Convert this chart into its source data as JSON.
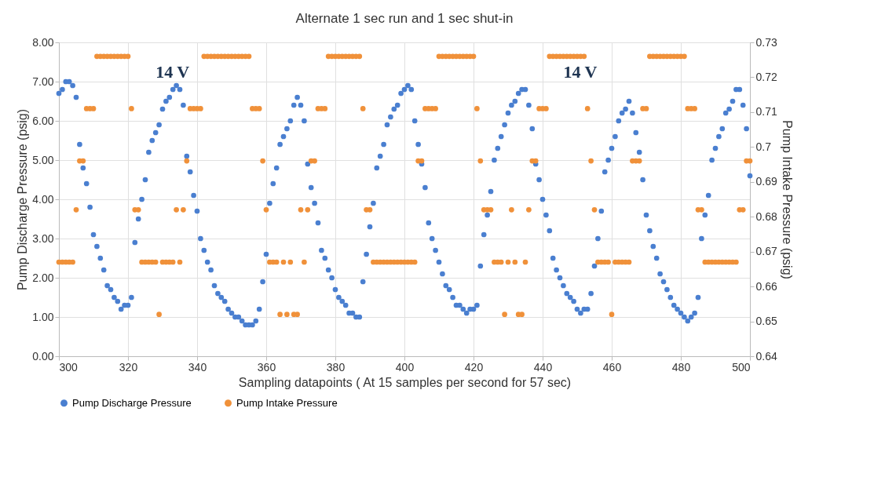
{
  "chart_data": {
    "type": "scatter",
    "title": "Alternate 1 sec run and 1 sec shut-in",
    "xlabel": "Sampling datapoints ( At 15 samples per second for 57 sec)",
    "ylabel": "Pump Discharge Pressure (psig)",
    "y2label": "Pump Intake Pressure (psig)",
    "x": [
      300,
      301,
      302,
      303,
      304,
      305,
      306,
      307,
      308,
      309,
      310,
      311,
      312,
      313,
      314,
      315,
      316,
      317,
      318,
      319,
      320,
      321,
      322,
      323,
      324,
      325,
      326,
      327,
      328,
      329,
      330,
      331,
      332,
      333,
      334,
      335,
      336,
      337,
      338,
      339,
      340,
      341,
      342,
      343,
      344,
      345,
      346,
      347,
      348,
      349,
      350,
      351,
      352,
      353,
      354,
      355,
      356,
      357,
      358,
      359,
      360,
      361,
      362,
      363,
      364,
      365,
      366,
      367,
      368,
      369,
      370,
      371,
      372,
      373,
      374,
      375,
      376,
      377,
      378,
      379,
      380,
      381,
      382,
      383,
      384,
      385,
      386,
      387,
      388,
      389,
      390,
      391,
      392,
      393,
      394,
      395,
      396,
      397,
      398,
      399,
      400,
      401,
      402,
      403,
      404,
      405,
      406,
      407,
      408,
      409,
      410,
      411,
      412,
      413,
      414,
      415,
      416,
      417,
      418,
      419,
      420,
      421,
      422,
      423,
      424,
      425,
      426,
      427,
      428,
      429,
      430,
      431,
      432,
      433,
      434,
      435,
      436,
      437,
      438,
      439,
      440,
      441,
      442,
      443,
      444,
      445,
      446,
      447,
      448,
      449,
      450,
      451,
      452,
      453,
      454,
      455,
      456,
      457,
      458,
      459,
      460,
      461,
      462,
      463,
      464,
      465,
      466,
      467,
      468,
      469,
      470,
      471,
      472,
      473,
      474,
      475,
      476,
      477,
      478,
      479,
      480,
      481,
      482,
      483,
      484,
      485,
      486,
      487,
      488,
      489,
      490,
      491,
      492,
      493,
      494,
      495,
      496,
      497,
      498,
      499,
      500
    ],
    "series": [
      {
        "name": "Pump Discharge Pressure",
        "color": "#4a7fd0",
        "values": [
          6.7,
          6.8,
          7.0,
          7.0,
          6.9,
          6.6,
          5.4,
          4.8,
          4.4,
          3.8,
          3.1,
          2.8,
          2.5,
          2.2,
          1.8,
          1.7,
          1.5,
          1.4,
          1.2,
          1.3,
          1.3,
          1.5,
          2.9,
          3.5,
          4.0,
          4.5,
          5.2,
          5.5,
          5.7,
          5.9,
          6.3,
          6.5,
          6.6,
          6.8,
          6.9,
          6.8,
          6.4,
          5.1,
          4.7,
          4.1,
          3.7,
          3.0,
          2.7,
          2.4,
          2.2,
          1.8,
          1.6,
          1.5,
          1.4,
          1.2,
          1.1,
          1.0,
          1.0,
          0.9,
          0.8,
          0.8,
          0.8,
          0.9,
          1.2,
          1.9,
          2.6,
          3.9,
          4.4,
          4.8,
          5.4,
          5.6,
          5.8,
          6.0,
          6.4,
          6.6,
          6.4,
          6.0,
          4.9,
          4.3,
          3.9,
          3.4,
          2.7,
          2.5,
          2.2,
          2.0,
          1.7,
          1.5,
          1.4,
          1.3,
          1.1,
          1.1,
          1.0,
          1.0,
          1.9,
          2.6,
          3.3,
          3.9,
          4.8,
          5.1,
          5.4,
          5.9,
          6.1,
          6.3,
          6.4,
          6.7,
          6.8,
          6.9,
          6.8,
          6.0,
          5.4,
          4.9,
          4.3,
          3.4,
          3.0,
          2.7,
          2.4,
          2.1,
          1.8,
          1.7,
          1.5,
          1.3,
          1.3,
          1.2,
          1.1,
          1.2,
          1.2,
          1.3,
          2.3,
          3.1,
          3.6,
          4.2,
          5.0,
          5.3,
          5.6,
          5.9,
          6.2,
          6.4,
          6.5,
          6.7,
          6.8,
          6.8,
          6.4,
          5.8,
          4.9,
          4.5,
          4.0,
          3.6,
          3.2,
          2.5,
          2.2,
          2.0,
          1.8,
          1.6,
          1.5,
          1.4,
          1.2,
          1.1,
          1.2,
          1.2,
          1.6,
          2.3,
          3.0,
          3.7,
          4.7,
          5.0,
          5.3,
          5.6,
          6.0,
          6.2,
          6.3,
          6.5,
          6.2,
          5.7,
          5.2,
          4.5,
          3.6,
          3.2,
          2.8,
          2.5,
          2.1,
          1.9,
          1.7,
          1.5,
          1.3,
          1.2,
          1.1,
          1.0,
          0.9,
          1.0,
          1.1,
          1.5,
          3.0,
          3.6,
          4.1,
          5.0,
          5.3,
          5.6,
          5.8,
          6.2,
          6.3,
          6.5,
          6.8,
          6.8,
          6.4,
          5.8,
          4.6
        ]
      },
      {
        "name": "Pump Intake Pressure",
        "color": "#f0913a",
        "axis": "y2",
        "values": [
          0.667,
          0.667,
          0.667,
          0.667,
          0.667,
          0.682,
          0.696,
          0.696,
          0.711,
          0.711,
          0.711,
          0.726,
          0.726,
          0.726,
          0.726,
          0.726,
          0.726,
          0.726,
          0.726,
          0.726,
          0.726,
          0.711,
          0.682,
          0.682,
          0.667,
          0.667,
          0.667,
          0.667,
          0.667,
          0.652,
          0.667,
          0.667,
          0.667,
          0.667,
          0.682,
          0.667,
          0.682,
          0.696,
          0.711,
          0.711,
          0.711,
          0.711,
          0.726,
          0.726,
          0.726,
          0.726,
          0.726,
          0.726,
          0.726,
          0.726,
          0.726,
          0.726,
          0.726,
          0.726,
          0.726,
          0.726,
          0.711,
          0.711,
          0.711,
          0.696,
          0.682,
          0.667,
          0.667,
          0.667,
          0.652,
          0.667,
          0.652,
          0.667,
          0.652,
          0.652,
          0.682,
          0.667,
          0.682,
          0.696,
          0.696,
          0.711,
          0.711,
          0.711,
          0.726,
          0.726,
          0.726,
          0.726,
          0.726,
          0.726,
          0.726,
          0.726,
          0.726,
          0.726,
          0.711,
          0.682,
          0.682,
          0.667,
          0.667,
          0.667,
          0.667,
          0.667,
          0.667,
          0.667,
          0.667,
          0.667,
          0.667,
          0.667,
          0.667,
          0.667,
          0.696,
          0.696,
          0.711,
          0.711,
          0.711,
          0.711,
          0.726,
          0.726,
          0.726,
          0.726,
          0.726,
          0.726,
          0.726,
          0.726,
          0.726,
          0.726,
          0.726,
          0.711,
          0.696,
          0.682,
          0.682,
          0.682,
          0.667,
          0.667,
          0.667,
          0.652,
          0.667,
          0.682,
          0.667,
          0.652,
          0.652,
          0.667,
          0.682,
          0.696,
          0.696,
          0.711,
          0.711,
          0.711,
          0.726,
          0.726,
          0.726,
          0.726,
          0.726,
          0.726,
          0.726,
          0.726,
          0.726,
          0.726,
          0.726,
          0.711,
          0.696,
          0.682,
          0.667,
          0.667,
          0.667,
          0.667,
          0.652,
          0.667,
          0.667,
          0.667,
          0.667,
          0.667,
          0.696,
          0.696,
          0.696,
          0.711,
          0.711,
          0.726,
          0.726,
          0.726,
          0.726,
          0.726,
          0.726,
          0.726,
          0.726,
          0.726,
          0.726,
          0.726,
          0.711,
          0.711,
          0.711,
          0.682,
          0.682,
          0.667,
          0.667,
          0.667,
          0.667,
          0.667,
          0.667,
          0.667,
          0.667,
          0.667,
          0.667,
          0.682,
          0.682,
          0.696,
          0.696
        ]
      }
    ],
    "xlim": [
      300,
      500
    ],
    "xticks": [
      300,
      320,
      340,
      360,
      380,
      400,
      420,
      440,
      460,
      480,
      500
    ],
    "ylim": [
      0,
      8
    ],
    "yticks": [
      {
        "value": 0,
        "label": "0.00"
      },
      {
        "value": 1,
        "label": "1.00"
      },
      {
        "value": 2,
        "label": "2.00"
      },
      {
        "value": 3,
        "label": "3.00"
      },
      {
        "value": 4,
        "label": "4.00"
      },
      {
        "value": 5,
        "label": "5.00"
      },
      {
        "value": 6,
        "label": "6.00"
      },
      {
        "value": 7,
        "label": "7.00"
      },
      {
        "value": 8,
        "label": "8.00"
      }
    ],
    "y2lim": [
      0.64,
      0.73
    ],
    "y2ticks": [
      0.64,
      0.65,
      0.66,
      0.67,
      0.68,
      0.69,
      0.7,
      0.71,
      0.72,
      0.73
    ],
    "annotations": [
      "14 V",
      "14 V"
    ],
    "grid": true,
    "legend": "bottom",
    "marker": "circle"
  }
}
